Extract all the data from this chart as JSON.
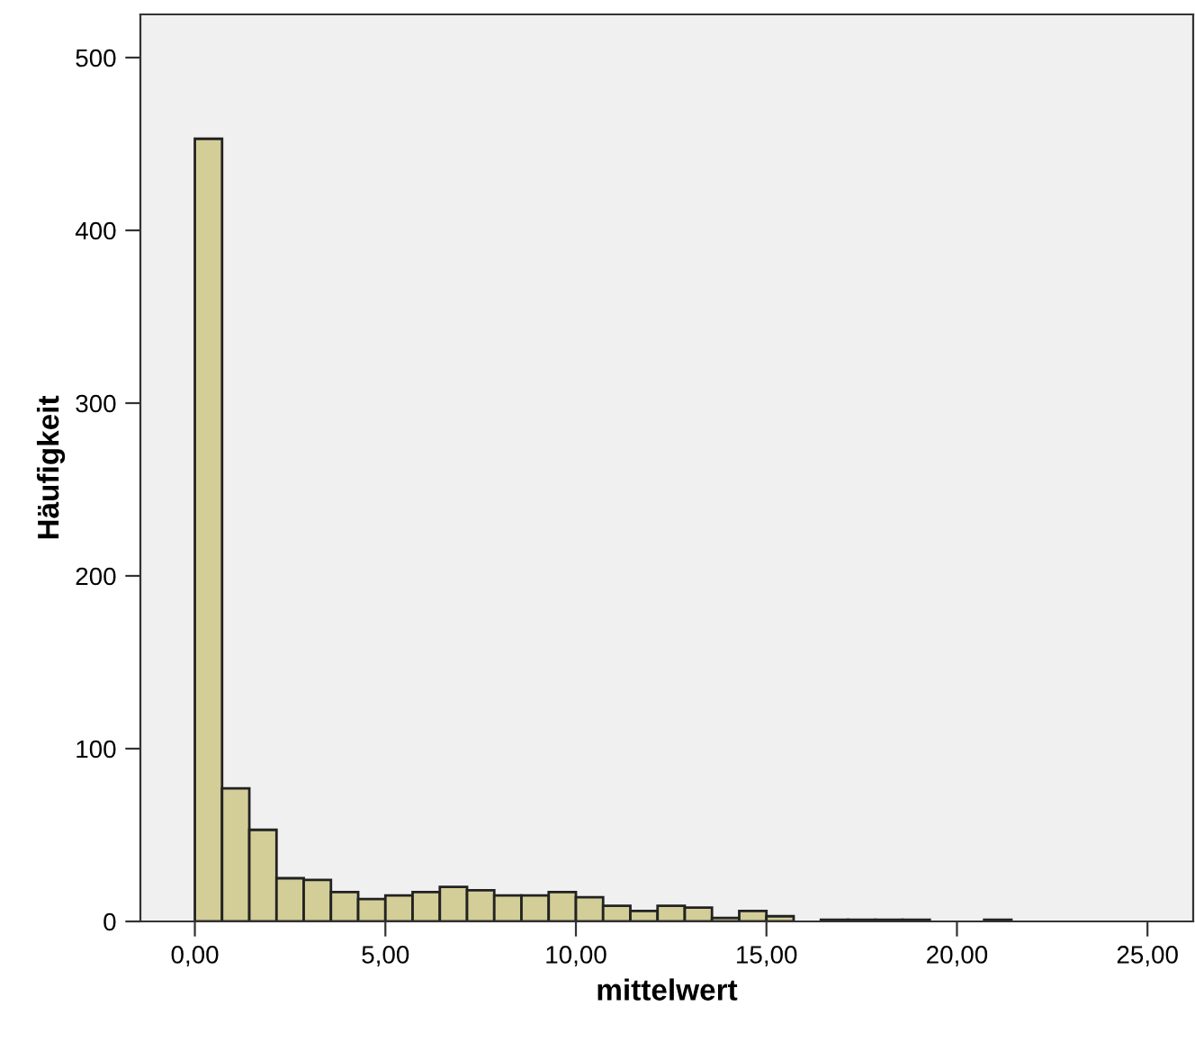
{
  "chart_data": {
    "type": "histogram",
    "xlabel": "mittelwert",
    "ylabel": "Häufigkeit",
    "bins": [
      0,
      0.714,
      1.429,
      2.143,
      2.857,
      3.571,
      4.286,
      5,
      5.714,
      6.429,
      7.143,
      7.857,
      8.571,
      9.286,
      10,
      10.714,
      11.429,
      12.143,
      12.857,
      13.571,
      14.286,
      15,
      15.714,
      16.429,
      17.143,
      17.857,
      18.571,
      19.286,
      20,
      20.714,
      21.429
    ],
    "values": [
      453,
      77,
      53,
      25,
      24,
      17,
      13,
      15,
      17,
      20,
      18,
      15,
      15,
      17,
      14,
      9,
      6,
      9,
      8,
      2,
      6,
      3,
      0,
      1,
      1,
      1,
      1,
      0,
      0,
      1
    ],
    "color": "#d3ce98",
    "xlim": [
      -1.43,
      26.2
    ],
    "ylim": [
      0,
      525
    ],
    "xticks": [
      {
        "value": 0,
        "label": "0,00"
      },
      {
        "value": 5,
        "label": "5,00"
      },
      {
        "value": 10,
        "label": "10,00"
      },
      {
        "value": 15,
        "label": "15,00"
      },
      {
        "value": 20,
        "label": "20,00"
      },
      {
        "value": 25,
        "label": "25,00"
      }
    ],
    "yticks": [
      0,
      100,
      200,
      300,
      400,
      500
    ],
    "grid": false
  }
}
